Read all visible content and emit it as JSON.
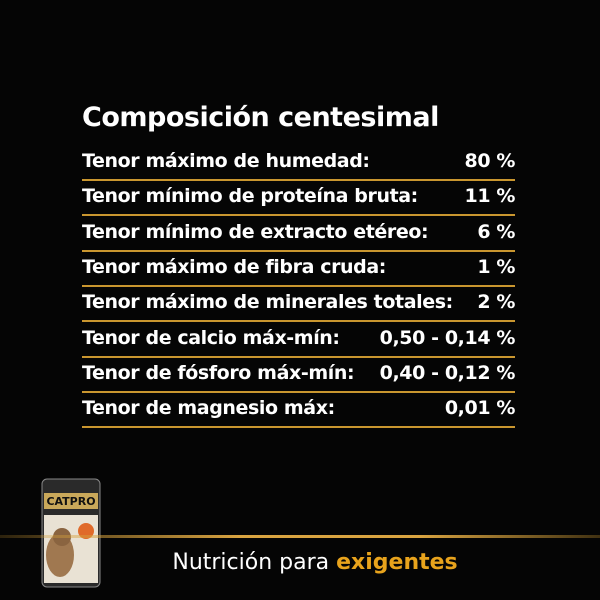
{
  "panel": {
    "title": "Composición centesimal",
    "rows": [
      {
        "label": "Tenor máximo de humedad:",
        "value": "80 %"
      },
      {
        "label": "Tenor mínimo de proteína bruta:",
        "value": "11 %"
      },
      {
        "label": "Tenor mínimo de extracto etéreo:",
        "value": "6 %"
      },
      {
        "label": "Tenor máximo de fibra cruda:",
        "value": "1 %"
      },
      {
        "label": "Tenor máximo de minerales totales:",
        "value": "2 %"
      },
      {
        "label": "Tenor de calcio máx-mín:",
        "value": "0,50 - 0,14 %"
      },
      {
        "label": "Tenor de fósforo máx-mín:",
        "value": "0,40 - 0,12 %"
      },
      {
        "label": "Tenor de magnesio máx:",
        "value": "0,01 %"
      }
    ]
  },
  "product": {
    "brand": "CATPRO"
  },
  "footer": {
    "text": "Nutrición para",
    "highlight": "exigentes"
  }
}
